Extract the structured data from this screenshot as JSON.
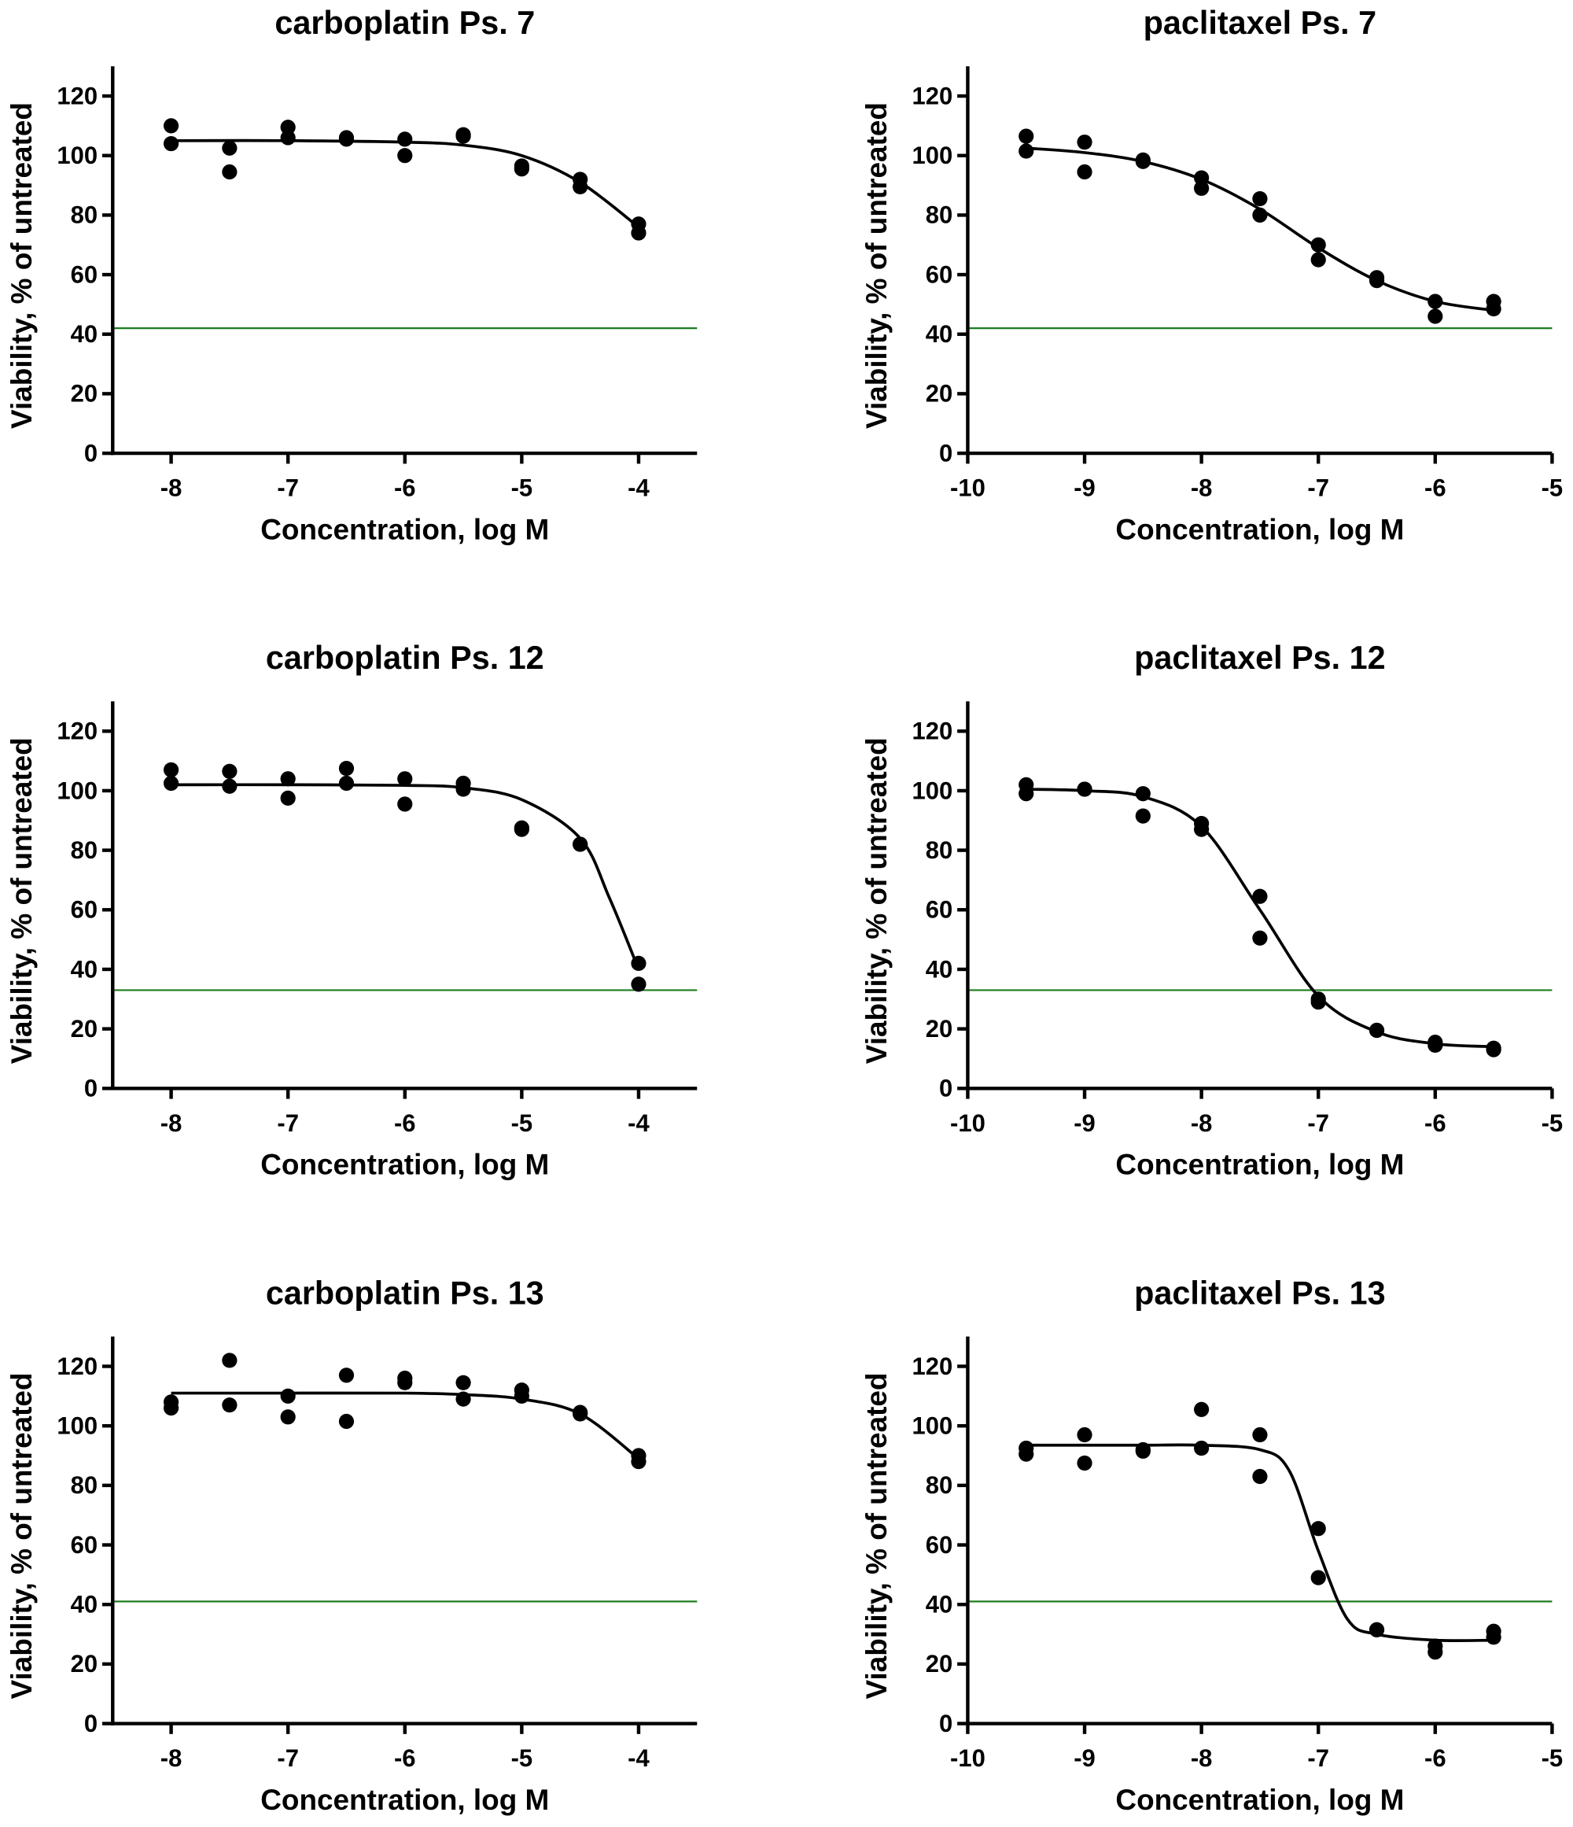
{
  "chart_data": [
    {
      "type": "scatter",
      "title": "carboplatin Ps. 7",
      "x_label": "Concentration, log M",
      "y_label": "Viability, % of untreated",
      "xlim": [
        -8.5,
        -3.5
      ],
      "xticks": [
        -8,
        -7,
        -6,
        -5,
        -4
      ],
      "ylim": [
        0,
        130
      ],
      "yticks": [
        0,
        20,
        40,
        60,
        80,
        100,
        120
      ],
      "color": "#000000",
      "x": [
        -8,
        -8,
        -7.5,
        -7.5,
        -7,
        -7,
        -6.5,
        -6.5,
        -6,
        -6,
        -5.5,
        -5.5,
        -5,
        -5,
        -4.5,
        -4.5,
        -4,
        -4
      ],
      "values": [
        110,
        104,
        102.5,
        94.5,
        109.5,
        106,
        106,
        105.5,
        105.5,
        100,
        107,
        106.5,
        96.5,
        95.5,
        92,
        89.5,
        77,
        74
      ],
      "fit": {
        "x": [
          -8,
          -7,
          -6,
          -5.5,
          -5,
          -4.5,
          -4
        ],
        "values": [
          105,
          105,
          104.5,
          103.5,
          100,
          91,
          76
        ]
      },
      "threshold": {
        "value": 42,
        "color": "#1e7d1e"
      }
    },
    {
      "type": "scatter",
      "title": "paclitaxel Ps. 7",
      "x_label": "Concentration, log M",
      "y_label": "Viability, % of untreated",
      "xlim": [
        -10,
        -5
      ],
      "xticks": [
        -10,
        -9,
        -8,
        -7,
        -6,
        -5
      ],
      "ylim": [
        0,
        130
      ],
      "yticks": [
        0,
        20,
        40,
        60,
        80,
        100,
        120
      ],
      "color": "#000000",
      "x": [
        -9.5,
        -9.5,
        -9,
        -9,
        -8.5,
        -8.5,
        -8,
        -8,
        -7.5,
        -7.5,
        -7,
        -7,
        -6.5,
        -6.5,
        -6,
        -6,
        -5.5,
        -5.5
      ],
      "values": [
        106.5,
        101.5,
        104.5,
        94.5,
        98.5,
        98,
        92.5,
        89,
        85.5,
        80,
        70,
        65,
        59,
        58,
        51,
        46,
        51,
        48.5
      ],
      "fit": {
        "x": [
          -9.5,
          -9,
          -8.5,
          -8,
          -7.5,
          -7,
          -6.5,
          -6,
          -5.5
        ],
        "values": [
          102.5,
          101,
          98,
          92,
          82,
          69,
          58,
          51,
          48
        ]
      },
      "threshold": {
        "value": 42,
        "color": "#1e7d1e"
      }
    },
    {
      "type": "scatter",
      "title": "carboplatin Ps. 12",
      "x_label": "Concentration, log M",
      "y_label": "Viability, % of untreated",
      "xlim": [
        -8.5,
        -3.5
      ],
      "xticks": [
        -8,
        -7,
        -6,
        -5,
        -4
      ],
      "ylim": [
        0,
        130
      ],
      "yticks": [
        0,
        20,
        40,
        60,
        80,
        100,
        120
      ],
      "color": "#000000",
      "x": [
        -8,
        -8,
        -7.5,
        -7.5,
        -7,
        -7,
        -6.5,
        -6.5,
        -6,
        -6,
        -5.5,
        -5.5,
        -5,
        -5,
        -4.5,
        -4.5,
        -4,
        -4
      ],
      "values": [
        107,
        102.5,
        106.5,
        101.5,
        104,
        97.5,
        107.5,
        102.5,
        104,
        95.5,
        102.5,
        100.5,
        87.5,
        87,
        82,
        82,
        42,
        35
      ],
      "fit": {
        "x": [
          -8,
          -7,
          -6,
          -5.5,
          -5,
          -4.5,
          -4.25,
          -4
        ],
        "values": [
          102,
          102,
          101.8,
          101,
          97,
          84,
          64,
          40
        ]
      },
      "threshold": {
        "value": 33,
        "color": "#1e7d1e"
      }
    },
    {
      "type": "scatter",
      "title": "paclitaxel Ps. 12",
      "x_label": "Concentration, log M",
      "y_label": "Viability, % of untreated",
      "xlim": [
        -10,
        -5
      ],
      "xticks": [
        -10,
        -9,
        -8,
        -7,
        -6,
        -5
      ],
      "ylim": [
        0,
        130
      ],
      "yticks": [
        0,
        20,
        40,
        60,
        80,
        100,
        120
      ],
      "color": "#000000",
      "x": [
        -9.5,
        -9.5,
        -9,
        -9,
        -8.5,
        -8.5,
        -8,
        -8,
        -7.5,
        -7.5,
        -7,
        -7,
        -6.5,
        -6.5,
        -6,
        -6,
        -5.5,
        -5.5
      ],
      "values": [
        102,
        99,
        100.5,
        100.5,
        99,
        91.5,
        89,
        87,
        64.5,
        50.5,
        30,
        29,
        19.5,
        19.5,
        15.5,
        14.5,
        13.5,
        13
      ],
      "fit": {
        "x": [
          -9.5,
          -9,
          -8.5,
          -8,
          -7.5,
          -7,
          -6.5,
          -6,
          -5.5
        ],
        "values": [
          100.5,
          100,
          98,
          88,
          60,
          31,
          19,
          15,
          14
        ]
      },
      "threshold": {
        "value": 33,
        "color": "#1e7d1e"
      }
    },
    {
      "type": "scatter",
      "title": "carboplatin Ps. 13",
      "x_label": "Concentration, log M",
      "y_label": "Viability, % of untreated",
      "xlim": [
        -8.5,
        -3.5
      ],
      "xticks": [
        -8,
        -7,
        -6,
        -5,
        -4
      ],
      "ylim": [
        0,
        130
      ],
      "yticks": [
        0,
        20,
        40,
        60,
        80,
        100,
        120
      ],
      "color": "#000000",
      "x": [
        -8,
        -8,
        -7.5,
        -7.5,
        -7,
        -7,
        -6.5,
        -6.5,
        -6,
        -6,
        -5.5,
        -5.5,
        -5,
        -5,
        -4.5,
        -4.5,
        -4,
        -4
      ],
      "values": [
        108,
        106,
        122,
        107,
        110,
        103,
        117,
        101.5,
        116,
        114.5,
        114.5,
        109,
        112,
        110,
        104.5,
        104,
        90,
        88
      ],
      "fit": {
        "x": [
          -8,
          -7,
          -6,
          -5.5,
          -5,
          -4.5,
          -4
        ],
        "values": [
          111,
          111,
          111,
          110.5,
          109,
          104,
          89
        ]
      },
      "threshold": {
        "value": 41,
        "color": "#1e7d1e"
      }
    },
    {
      "type": "scatter",
      "title": "paclitaxel Ps. 13",
      "x_label": "Concentration, log M",
      "y_label": "Viability, % of untreated",
      "xlim": [
        -10,
        -5
      ],
      "xticks": [
        -10,
        -9,
        -8,
        -7,
        -6,
        -5
      ],
      "ylim": [
        0,
        130
      ],
      "yticks": [
        0,
        20,
        40,
        60,
        80,
        100,
        120
      ],
      "color": "#000000",
      "x": [
        -9.5,
        -9.5,
        -9,
        -9,
        -8.5,
        -8.5,
        -8,
        -8,
        -7.5,
        -7.5,
        -7,
        -7,
        -6.5,
        -6.5,
        -6,
        -6,
        -5.5,
        -5.5
      ],
      "values": [
        92.5,
        90.5,
        97,
        87.5,
        92,
        91.5,
        105.5,
        92.5,
        97,
        83,
        65.5,
        49,
        31.5,
        31.5,
        26,
        24,
        31,
        29
      ],
      "fit": {
        "x": [
          -9.5,
          -9,
          -8.5,
          -8,
          -7.5,
          -7.25,
          -7,
          -6.75,
          -6.5,
          -6,
          -5.5
        ],
        "values": [
          93.5,
          93.5,
          93.5,
          93.5,
          92,
          85,
          58,
          35,
          30,
          28,
          28
        ]
      },
      "threshold": {
        "value": 41,
        "color": "#1e7d1e"
      }
    }
  ]
}
